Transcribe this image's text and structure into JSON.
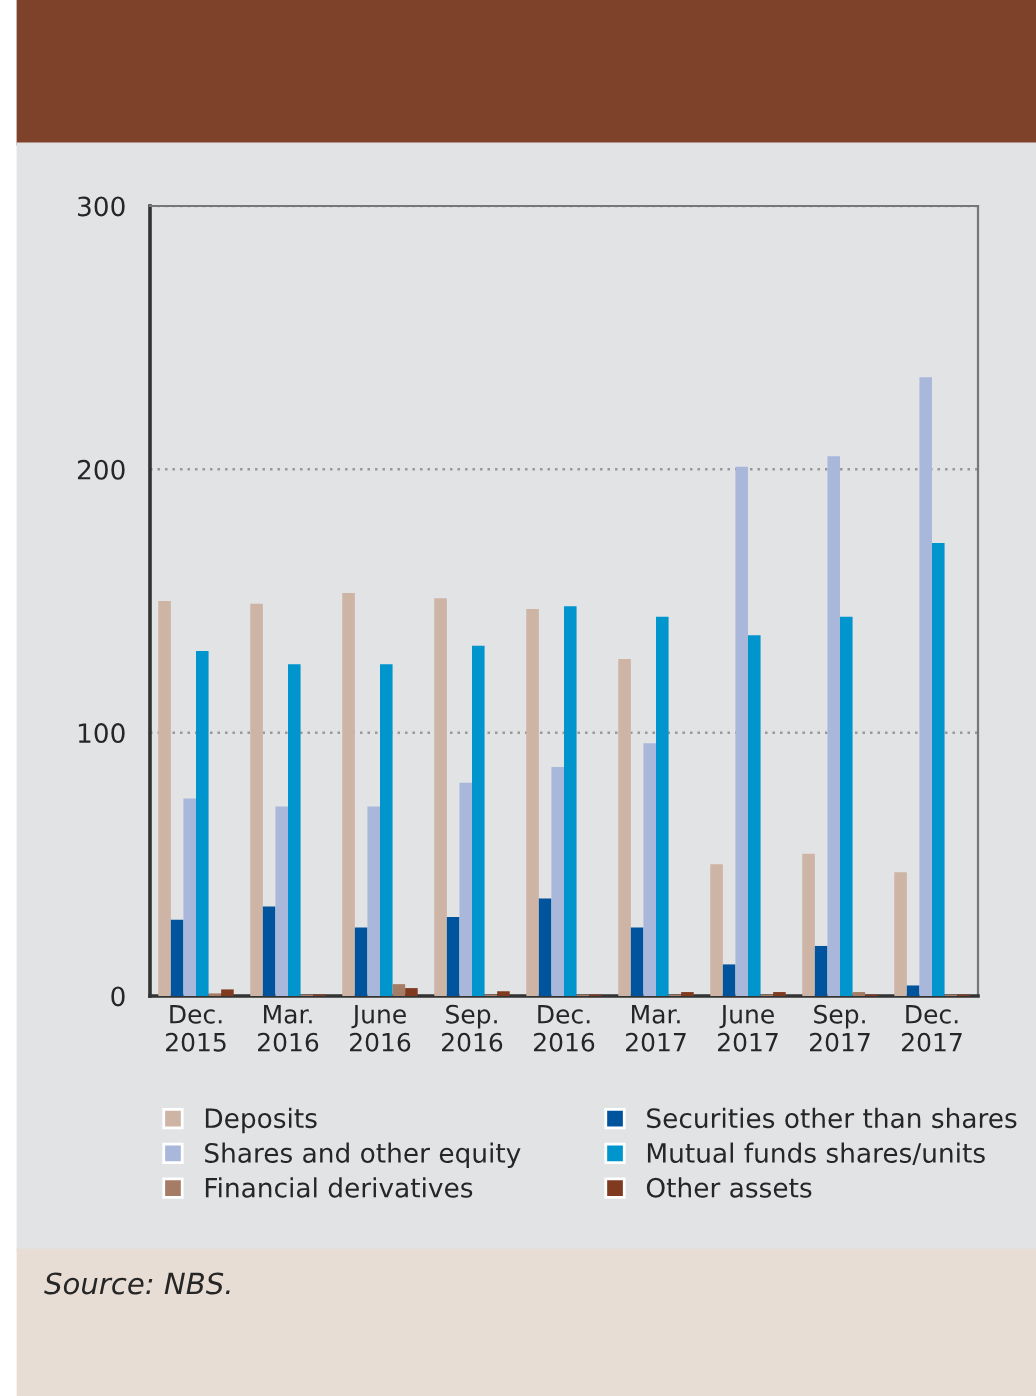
{
  "chart_data": {
    "type": "bar",
    "categories": [
      "Dec.\n2015",
      "Mar.\n2016",
      "June\n2016",
      "Sep.\n2016",
      "Dec.\n2016",
      "Mar.\n2017",
      "June\n2017",
      "Sep.\n2017",
      "Dec.\n2017"
    ],
    "series": [
      {
        "name": "Deposits",
        "color": "#cdb4a5",
        "values": [
          150,
          149,
          153,
          151,
          147,
          128,
          50,
          54,
          47
        ]
      },
      {
        "name": "Securities other than shares",
        "color": "#00549e",
        "values": [
          29,
          34,
          26,
          30,
          37,
          26,
          12,
          19,
          4
        ]
      },
      {
        "name": "Shares and other equity",
        "color": "#a9b7db",
        "values": [
          75,
          72,
          72,
          81,
          87,
          96,
          201,
          205,
          235
        ]
      },
      {
        "name": "Mutual funds shares/units",
        "color": "#0095cc",
        "values": [
          131,
          126,
          126,
          133,
          148,
          144,
          137,
          144,
          172
        ]
      },
      {
        "name": "Financial derivatives",
        "color": "#a57c65",
        "values": [
          1,
          0.5,
          4.5,
          0.5,
          0.5,
          0.5,
          0.5,
          1.5,
          0.5
        ]
      },
      {
        "name": "Other assets",
        "color": "#7f3a20",
        "values": [
          2.5,
          0.5,
          3,
          1.8,
          0.5,
          1.5,
          1.5,
          0.5,
          0.5
        ]
      }
    ],
    "ylim": [
      0,
      300
    ],
    "yticks": [
      0,
      100,
      200,
      300
    ],
    "grid": "y",
    "legend": "bottom",
    "annotations": [
      "Source: NBS."
    ]
  }
}
